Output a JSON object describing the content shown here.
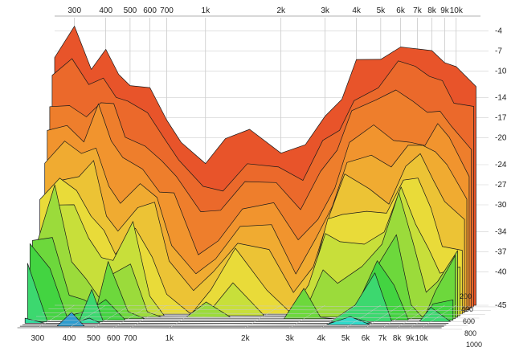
{
  "chart_data": {
    "type": "waterfall-3d",
    "title": "",
    "x_axis": {
      "scale": "log",
      "range_hz": [
        250,
        12500
      ],
      "tick_values": [
        300,
        400,
        500,
        600,
        700,
        1000,
        2000,
        3000,
        4000,
        5000,
        6000,
        7000,
        8000,
        9000,
        10000
      ],
      "tick_labels": [
        "300",
        "400",
        "500",
        "600",
        "700",
        "1k",
        "2k",
        "3k",
        "4k",
        "5k",
        "6k",
        "7k",
        "8k",
        "9k",
        "10k"
      ]
    },
    "z_axis": {
      "unit": "dB",
      "range": [
        -45,
        -3
      ],
      "tick_values": [
        -4,
        -7,
        -10,
        -14,
        -17,
        -20,
        -24,
        -27,
        -30,
        -34,
        -37,
        -40,
        -45
      ],
      "tick_labels": [
        "-4",
        "-7",
        "-10",
        "-14",
        "-17",
        "-20",
        "-24",
        "-27",
        "-30",
        "-34",
        "-37",
        "-40",
        "-45"
      ]
    },
    "depth_axis": {
      "tick_values": [
        200,
        400,
        600,
        800,
        1000
      ],
      "tick_labels": [
        "200",
        "400",
        "600",
        "800",
        "1000"
      ]
    },
    "slices": {
      "count": 16,
      "frequencies_hz": [
        250,
        300,
        350,
        400,
        450,
        500,
        600,
        700,
        800,
        1000,
        1200,
        1500,
        2000,
        2500,
        3000,
        3500,
        4000,
        5000,
        6000,
        7000,
        8000,
        9000,
        10000,
        12000
      ],
      "front_level_db": [
        -6,
        -5,
        -8,
        -7,
        -10,
        -12,
        -13,
        -16,
        -20,
        -24,
        -22,
        -20,
        -21,
        -23,
        -18,
        -14,
        -10,
        -8,
        -7,
        -6,
        -8,
        -9,
        -10,
        -12
      ],
      "decay_per_slice_db": 2.6
    },
    "colors": {
      "front": "#e8542a",
      "mid_orange": "#f29a2e",
      "yellow": "#e8e23a",
      "green": "#44d43c",
      "cyan": "#2fe0c8",
      "back": "#2b5fd6"
    }
  }
}
